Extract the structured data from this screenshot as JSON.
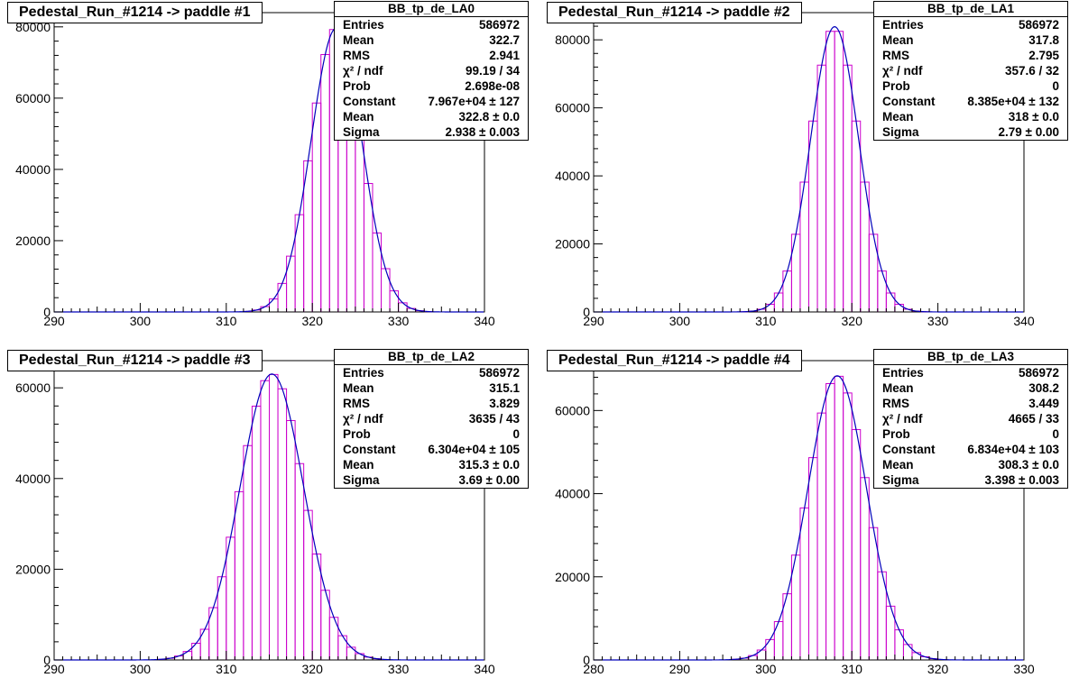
{
  "colors": {
    "hist": "#cc00cc",
    "fit": "#0000bb",
    "axis": "#000000"
  },
  "chart_data": [
    {
      "type": "bar",
      "title": "Pedestal_Run_#1214 -> paddle #1",
      "hist_name": "BB_tp_de_LA0",
      "xlim": [
        290,
        340
      ],
      "ylim": [
        0,
        84000
      ],
      "x_ticks": [
        "290",
        "300",
        "310",
        "320",
        "330",
        "340"
      ],
      "y_ticks": [
        "0",
        "20000",
        "40000",
        "60000",
        "80000"
      ],
      "fit": {
        "constant": 79670,
        "mean": 322.8,
        "sigma": 2.938
      },
      "stats": [
        {
          "label": "Entries",
          "value": "586972"
        },
        {
          "label": "Mean",
          "value": "322.7"
        },
        {
          "label": "RMS",
          "value": "2.941"
        },
        {
          "label": "χ² / ndf",
          "value": "99.19 / 34"
        },
        {
          "label": "Prob",
          "value": "2.698e-08"
        },
        {
          "label": "Constant",
          "value": "7.967e+04 ± 127"
        },
        {
          "label": "Mean",
          "value": "322.8 ± 0.0"
        },
        {
          "label": "Sigma",
          "value": "2.938 ± 0.003"
        }
      ]
    },
    {
      "type": "bar",
      "title": "Pedestal_Run_#1214 -> paddle #2",
      "hist_name": "BB_tp_de_LA1",
      "xlim": [
        290,
        340
      ],
      "ylim": [
        0,
        88000
      ],
      "x_ticks": [
        "290",
        "300",
        "310",
        "320",
        "330",
        "340"
      ],
      "y_ticks": [
        "0",
        "20000",
        "40000",
        "60000",
        "80000"
      ],
      "fit": {
        "constant": 83850,
        "mean": 318,
        "sigma": 2.79
      },
      "stats": [
        {
          "label": "Entries",
          "value": "586972"
        },
        {
          "label": "Mean",
          "value": "317.8"
        },
        {
          "label": "RMS",
          "value": "2.795"
        },
        {
          "label": "χ² / ndf",
          "value": "357.6 / 32"
        },
        {
          "label": "Prob",
          "value": "0"
        },
        {
          "label": "Constant",
          "value": "8.385e+04 ± 132"
        },
        {
          "label": "Mean",
          "value": "318 ± 0.0"
        },
        {
          "label": "Sigma",
          "value": "2.79 ± 0.00"
        }
      ]
    },
    {
      "type": "bar",
      "title": "Pedestal_Run_#1214 -> paddle #3",
      "hist_name": "BB_tp_de_LA2",
      "xlim": [
        290,
        340
      ],
      "ylim": [
        0,
        66000
      ],
      "x_ticks": [
        "290",
        "300",
        "310",
        "320",
        "330",
        "340"
      ],
      "y_ticks": [
        "0",
        "20000",
        "40000",
        "60000"
      ],
      "fit": {
        "constant": 63040,
        "mean": 315.3,
        "sigma": 3.69
      },
      "stats": [
        {
          "label": "Entries",
          "value": "586972"
        },
        {
          "label": "Mean",
          "value": "315.1"
        },
        {
          "label": "RMS",
          "value": "3.829"
        },
        {
          "label": "χ² / ndf",
          "value": "3635 / 43"
        },
        {
          "label": "Prob",
          "value": "0"
        },
        {
          "label": "Constant",
          "value": "6.304e+04 ± 105"
        },
        {
          "label": "Mean",
          "value": "315.3 ± 0.0"
        },
        {
          "label": "Sigma",
          "value": "3.69 ± 0.00"
        }
      ]
    },
    {
      "type": "bar",
      "title": "Pedestal_Run_#1214 -> paddle #4",
      "hist_name": "BB_tp_de_LA3",
      "xlim": [
        280,
        330
      ],
      "ylim": [
        0,
        72000
      ],
      "x_ticks": [
        "280",
        "290",
        "300",
        "310",
        "320",
        "330"
      ],
      "y_ticks": [
        "0",
        "20000",
        "40000",
        "60000"
      ],
      "fit": {
        "constant": 68340,
        "mean": 308.3,
        "sigma": 3.398
      },
      "stats": [
        {
          "label": "Entries",
          "value": "586972"
        },
        {
          "label": "Mean",
          "value": "308.2"
        },
        {
          "label": "RMS",
          "value": "3.449"
        },
        {
          "label": "χ² / ndf",
          "value": "4665 / 33"
        },
        {
          "label": "Prob",
          "value": "0"
        },
        {
          "label": "Constant",
          "value": "6.834e+04 ± 103"
        },
        {
          "label": "Mean",
          "value": "308.3 ± 0.0"
        },
        {
          "label": "Sigma",
          "value": "3.398 ± 0.003"
        }
      ]
    }
  ]
}
